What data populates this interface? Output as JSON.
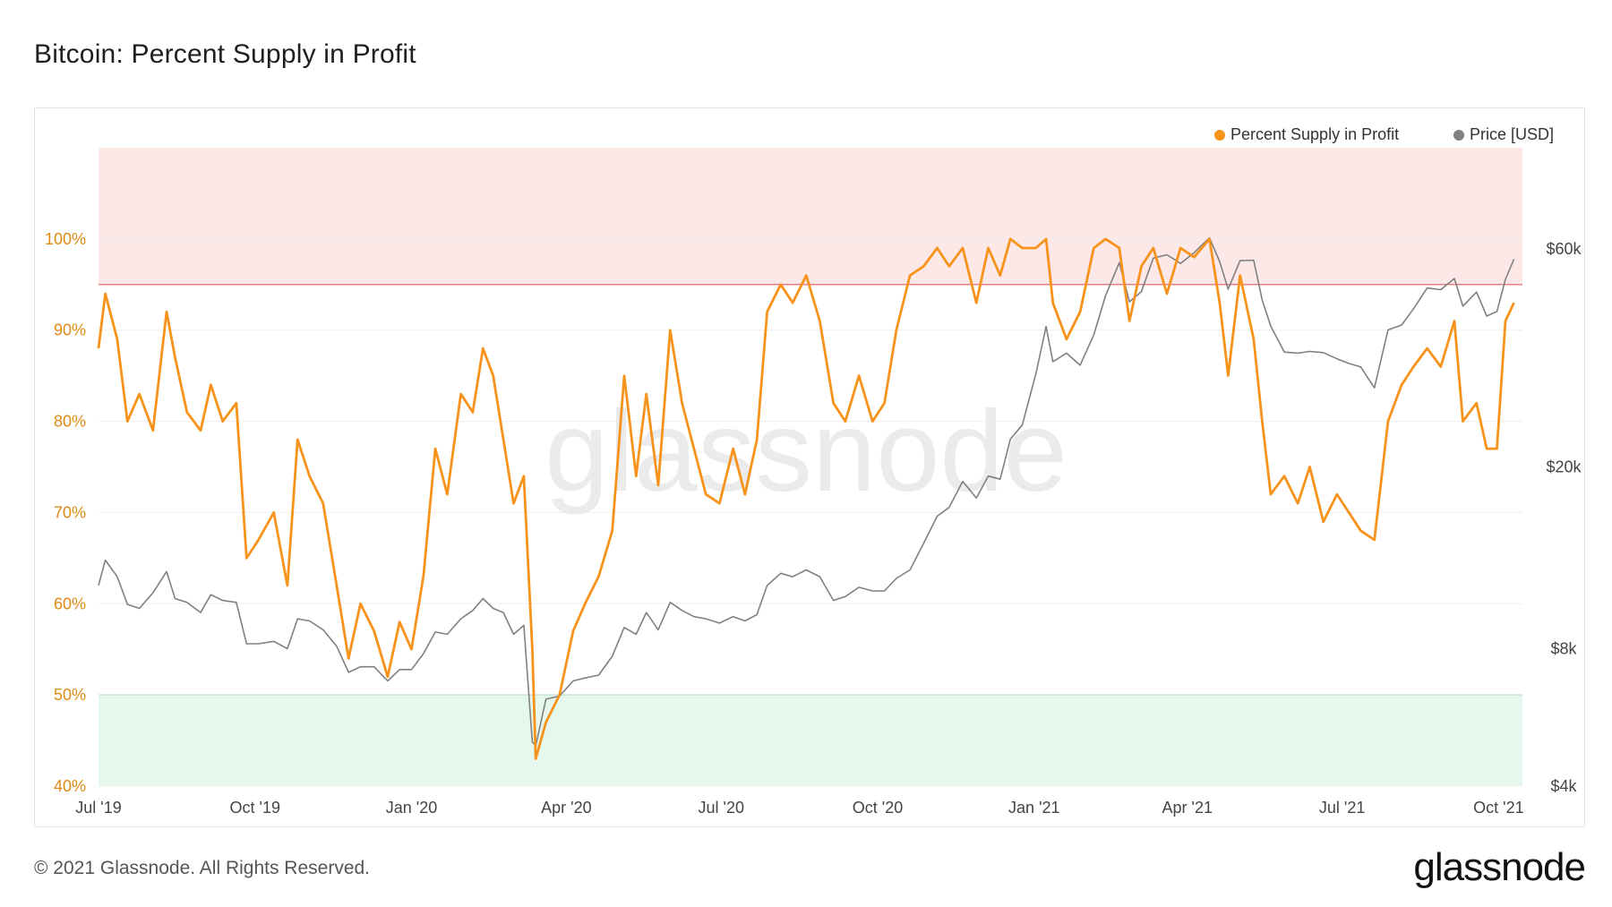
{
  "header": {
    "title": "Bitcoin: Percent Supply in Profit"
  },
  "footer": {
    "copyright": "© 2021 Glassnode. All Rights Reserved.",
    "brand": "glassnode"
  },
  "watermark": "glassnode",
  "colors": {
    "profit": "#f7931a",
    "price": "#808080",
    "red_zone": "#fde8e8",
    "red_line": "#e88080",
    "green_zone": "#e6f7ee",
    "green_line": "#7fd1a8",
    "left_axis": "#e08a14"
  },
  "chart_data": {
    "type": "line",
    "title": "Bitcoin: Percent Supply in Profit",
    "legend": [
      "Percent Supply in Profit",
      "Price [USD]"
    ],
    "legend_position": "top-right",
    "x_ticks": [
      "Jul '19",
      "Oct '19",
      "Jan '20",
      "Apr '20",
      "Jul '20",
      "Oct '20",
      "Jan '21",
      "Apr '21",
      "Jul '21",
      "Oct '21"
    ],
    "y_left": {
      "ticks": [
        "40%",
        "50%",
        "60%",
        "70%",
        "80%",
        "90%",
        "100%"
      ],
      "range": [
        40,
        110
      ]
    },
    "y_right": {
      "ticks": [
        "$4k",
        "$8k",
        "$20k",
        "$60k"
      ],
      "scale": "log"
    },
    "bands": [
      {
        "name": "upper",
        "from": 95,
        "to": 110,
        "color": "#fde8e8"
      },
      {
        "name": "lower",
        "from": 40,
        "to": 50,
        "color": "#e6f7ee"
      }
    ],
    "series": [
      {
        "name": "Percent Supply in Profit",
        "color": "#f7931a",
        "points": [
          [
            "2019-07-01",
            88
          ],
          [
            "2019-07-05",
            94
          ],
          [
            "2019-07-12",
            89
          ],
          [
            "2019-07-18",
            80
          ],
          [
            "2019-07-25",
            83
          ],
          [
            "2019-08-02",
            79
          ],
          [
            "2019-08-10",
            92
          ],
          [
            "2019-08-15",
            87
          ],
          [
            "2019-08-22",
            81
          ],
          [
            "2019-08-30",
            79
          ],
          [
            "2019-09-05",
            84
          ],
          [
            "2019-09-12",
            80
          ],
          [
            "2019-09-20",
            82
          ],
          [
            "2019-09-26",
            65
          ],
          [
            "2019-10-03",
            67
          ],
          [
            "2019-10-12",
            70
          ],
          [
            "2019-10-20",
            62
          ],
          [
            "2019-10-26",
            78
          ],
          [
            "2019-11-02",
            74
          ],
          [
            "2019-11-10",
            71
          ],
          [
            "2019-11-18",
            62
          ],
          [
            "2019-11-25",
            54
          ],
          [
            "2019-12-02",
            60
          ],
          [
            "2019-12-10",
            57
          ],
          [
            "2019-12-18",
            52
          ],
          [
            "2019-12-25",
            58
          ],
          [
            "2020-01-01",
            55
          ],
          [
            "2020-01-08",
            63
          ],
          [
            "2020-01-15",
            77
          ],
          [
            "2020-01-22",
            72
          ],
          [
            "2020-01-30",
            83
          ],
          [
            "2020-02-06",
            81
          ],
          [
            "2020-02-12",
            88
          ],
          [
            "2020-02-18",
            85
          ],
          [
            "2020-02-24",
            78
          ],
          [
            "2020-03-01",
            71
          ],
          [
            "2020-03-07",
            74
          ],
          [
            "2020-03-12",
            55
          ],
          [
            "2020-03-14",
            43
          ],
          [
            "2020-03-20",
            47
          ],
          [
            "2020-03-28",
            50
          ],
          [
            "2020-04-05",
            57
          ],
          [
            "2020-04-12",
            60
          ],
          [
            "2020-04-20",
            63
          ],
          [
            "2020-04-28",
            68
          ],
          [
            "2020-05-05",
            85
          ],
          [
            "2020-05-12",
            74
          ],
          [
            "2020-05-18",
            83
          ],
          [
            "2020-05-25",
            73
          ],
          [
            "2020-06-01",
            90
          ],
          [
            "2020-06-08",
            82
          ],
          [
            "2020-06-15",
            77
          ],
          [
            "2020-06-22",
            72
          ],
          [
            "2020-06-30",
            71
          ],
          [
            "2020-07-08",
            77
          ],
          [
            "2020-07-15",
            72
          ],
          [
            "2020-07-22",
            78
          ],
          [
            "2020-07-28",
            92
          ],
          [
            "2020-08-05",
            95
          ],
          [
            "2020-08-12",
            93
          ],
          [
            "2020-08-20",
            96
          ],
          [
            "2020-08-28",
            91
          ],
          [
            "2020-09-05",
            82
          ],
          [
            "2020-09-12",
            80
          ],
          [
            "2020-09-20",
            85
          ],
          [
            "2020-09-28",
            80
          ],
          [
            "2020-10-05",
            82
          ],
          [
            "2020-10-12",
            90
          ],
          [
            "2020-10-20",
            96
          ],
          [
            "2020-10-28",
            97
          ],
          [
            "2020-11-05",
            99
          ],
          [
            "2020-11-12",
            97
          ],
          [
            "2020-11-20",
            99
          ],
          [
            "2020-11-28",
            93
          ],
          [
            "2020-12-05",
            99
          ],
          [
            "2020-12-12",
            96
          ],
          [
            "2020-12-18",
            100
          ],
          [
            "2020-12-25",
            99
          ],
          [
            "2021-01-02",
            99
          ],
          [
            "2021-01-08",
            100
          ],
          [
            "2021-01-12",
            93
          ],
          [
            "2021-01-20",
            89
          ],
          [
            "2021-01-28",
            92
          ],
          [
            "2021-02-05",
            99
          ],
          [
            "2021-02-12",
            100
          ],
          [
            "2021-02-20",
            99
          ],
          [
            "2021-02-26",
            91
          ],
          [
            "2021-03-05",
            97
          ],
          [
            "2021-03-12",
            99
          ],
          [
            "2021-03-20",
            94
          ],
          [
            "2021-03-28",
            99
          ],
          [
            "2021-04-05",
            98
          ],
          [
            "2021-04-14",
            100
          ],
          [
            "2021-04-20",
            93
          ],
          [
            "2021-04-25",
            85
          ],
          [
            "2021-05-02",
            96
          ],
          [
            "2021-05-10",
            89
          ],
          [
            "2021-05-15",
            80
          ],
          [
            "2021-05-20",
            72
          ],
          [
            "2021-05-28",
            74
          ],
          [
            "2021-06-05",
            71
          ],
          [
            "2021-06-12",
            75
          ],
          [
            "2021-06-20",
            69
          ],
          [
            "2021-06-28",
            72
          ],
          [
            "2021-07-05",
            70
          ],
          [
            "2021-07-12",
            68
          ],
          [
            "2021-07-20",
            67
          ],
          [
            "2021-07-28",
            80
          ],
          [
            "2021-08-05",
            84
          ],
          [
            "2021-08-12",
            86
          ],
          [
            "2021-08-20",
            88
          ],
          [
            "2021-08-28",
            86
          ],
          [
            "2021-09-05",
            91
          ],
          [
            "2021-09-10",
            80
          ],
          [
            "2021-09-18",
            82
          ],
          [
            "2021-09-24",
            77
          ],
          [
            "2021-09-30",
            77
          ],
          [
            "2021-10-05",
            91
          ],
          [
            "2021-10-10",
            93
          ]
        ]
      },
      {
        "name": "Price [USD]",
        "color": "#808080",
        "points": [
          [
            "2019-07-01",
            11000
          ],
          [
            "2019-07-05",
            12500
          ],
          [
            "2019-07-12",
            11500
          ],
          [
            "2019-07-18",
            10000
          ],
          [
            "2019-07-25",
            9800
          ],
          [
            "2019-08-02",
            10600
          ],
          [
            "2019-08-10",
            11800
          ],
          [
            "2019-08-15",
            10300
          ],
          [
            "2019-08-22",
            10100
          ],
          [
            "2019-08-30",
            9600
          ],
          [
            "2019-09-05",
            10500
          ],
          [
            "2019-09-12",
            10200
          ],
          [
            "2019-09-20",
            10100
          ],
          [
            "2019-09-26",
            8200
          ],
          [
            "2019-10-03",
            8200
          ],
          [
            "2019-10-12",
            8300
          ],
          [
            "2019-10-20",
            8000
          ],
          [
            "2019-10-26",
            9300
          ],
          [
            "2019-11-02",
            9200
          ],
          [
            "2019-11-10",
            8800
          ],
          [
            "2019-11-18",
            8100
          ],
          [
            "2019-11-25",
            7100
          ],
          [
            "2019-12-02",
            7300
          ],
          [
            "2019-12-10",
            7300
          ],
          [
            "2019-12-18",
            6800
          ],
          [
            "2019-12-25",
            7200
          ],
          [
            "2020-01-01",
            7200
          ],
          [
            "2020-01-08",
            7800
          ],
          [
            "2020-01-15",
            8700
          ],
          [
            "2020-01-22",
            8600
          ],
          [
            "2020-01-30",
            9300
          ],
          [
            "2020-02-06",
            9700
          ],
          [
            "2020-02-12",
            10300
          ],
          [
            "2020-02-18",
            9800
          ],
          [
            "2020-02-24",
            9600
          ],
          [
            "2020-03-01",
            8600
          ],
          [
            "2020-03-07",
            9000
          ],
          [
            "2020-03-12",
            5000
          ],
          [
            "2020-03-14",
            4900
          ],
          [
            "2020-03-20",
            6200
          ],
          [
            "2020-03-28",
            6300
          ],
          [
            "2020-04-05",
            6800
          ],
          [
            "2020-04-12",
            6900
          ],
          [
            "2020-04-20",
            7000
          ],
          [
            "2020-04-28",
            7700
          ],
          [
            "2020-05-05",
            8900
          ],
          [
            "2020-05-12",
            8600
          ],
          [
            "2020-05-18",
            9600
          ],
          [
            "2020-05-25",
            8800
          ],
          [
            "2020-06-01",
            10100
          ],
          [
            "2020-06-08",
            9700
          ],
          [
            "2020-06-15",
            9400
          ],
          [
            "2020-06-22",
            9300
          ],
          [
            "2020-06-30",
            9100
          ],
          [
            "2020-07-08",
            9400
          ],
          [
            "2020-07-15",
            9200
          ],
          [
            "2020-07-22",
            9500
          ],
          [
            "2020-07-28",
            11000
          ],
          [
            "2020-08-05",
            11700
          ],
          [
            "2020-08-12",
            11500
          ],
          [
            "2020-08-20",
            11900
          ],
          [
            "2020-08-28",
            11500
          ],
          [
            "2020-09-05",
            10200
          ],
          [
            "2020-09-12",
            10400
          ],
          [
            "2020-09-20",
            10900
          ],
          [
            "2020-09-28",
            10700
          ],
          [
            "2020-10-05",
            10700
          ],
          [
            "2020-10-12",
            11400
          ],
          [
            "2020-10-20",
            11900
          ],
          [
            "2020-10-28",
            13600
          ],
          [
            "2020-11-05",
            15600
          ],
          [
            "2020-11-12",
            16300
          ],
          [
            "2020-11-20",
            18600
          ],
          [
            "2020-11-28",
            17100
          ],
          [
            "2020-12-05",
            19100
          ],
          [
            "2020-12-12",
            18800
          ],
          [
            "2020-12-18",
            23000
          ],
          [
            "2020-12-25",
            24700
          ],
          [
            "2021-01-02",
            32000
          ],
          [
            "2021-01-08",
            40600
          ],
          [
            "2021-01-12",
            34000
          ],
          [
            "2021-01-20",
            35500
          ],
          [
            "2021-01-28",
            33400
          ],
          [
            "2021-02-05",
            38900
          ],
          [
            "2021-02-12",
            47500
          ],
          [
            "2021-02-20",
            56000
          ],
          [
            "2021-02-26",
            46000
          ],
          [
            "2021-03-05",
            48400
          ],
          [
            "2021-03-12",
            57300
          ],
          [
            "2021-03-20",
            58300
          ],
          [
            "2021-03-28",
            55800
          ],
          [
            "2021-04-05",
            58900
          ],
          [
            "2021-04-14",
            63500
          ],
          [
            "2021-04-20",
            56300
          ],
          [
            "2021-04-25",
            49000
          ],
          [
            "2021-05-02",
            56600
          ],
          [
            "2021-05-10",
            56700
          ],
          [
            "2021-05-15",
            46400
          ],
          [
            "2021-05-20",
            40700
          ],
          [
            "2021-05-28",
            35700
          ],
          [
            "2021-06-05",
            35500
          ],
          [
            "2021-06-12",
            35800
          ],
          [
            "2021-06-20",
            35600
          ],
          [
            "2021-06-28",
            34500
          ],
          [
            "2021-07-05",
            33700
          ],
          [
            "2021-07-12",
            33100
          ],
          [
            "2021-07-20",
            29800
          ],
          [
            "2021-07-28",
            39900
          ],
          [
            "2021-08-05",
            40900
          ],
          [
            "2021-08-12",
            44400
          ],
          [
            "2021-08-20",
            49300
          ],
          [
            "2021-08-28",
            48900
          ],
          [
            "2021-09-05",
            51700
          ],
          [
            "2021-09-10",
            45000
          ],
          [
            "2021-09-18",
            48300
          ],
          [
            "2021-09-24",
            42800
          ],
          [
            "2021-09-30",
            43800
          ],
          [
            "2021-10-05",
            51500
          ],
          [
            "2021-10-10",
            57000
          ]
        ]
      }
    ]
  }
}
